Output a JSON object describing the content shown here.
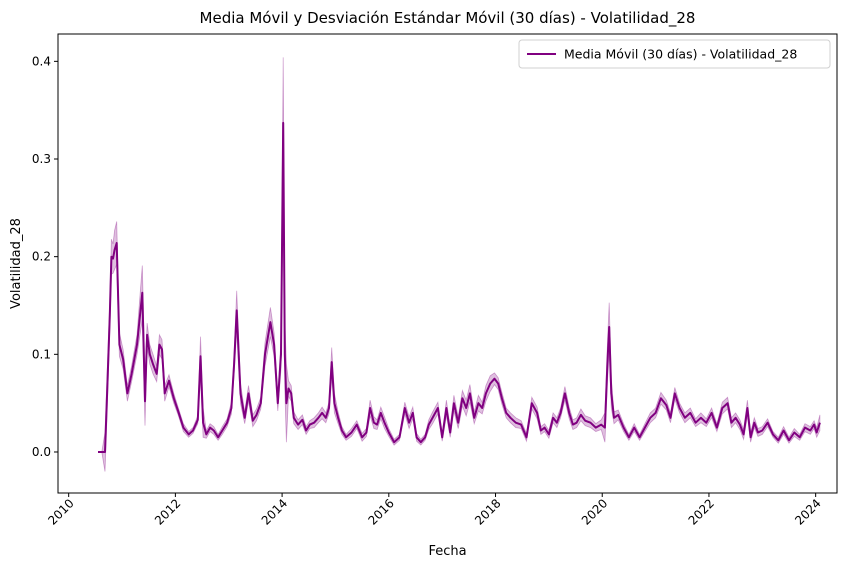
{
  "chart_data": {
    "type": "line",
    "title": "Media Móvil y Desviación Estándar Móvil (30 días) - Volatilidad_28",
    "xlabel": "Fecha",
    "ylabel": "Volatilidad_28",
    "xlim": [
      2009.8,
      2024.4
    ],
    "ylim": [
      -0.042,
      0.428
    ],
    "x_ticks": [
      2010,
      2012,
      2014,
      2016,
      2018,
      2020,
      2022,
      2024
    ],
    "x_tick_labels": [
      "2010",
      "2012",
      "2014",
      "2016",
      "2018",
      "2020",
      "2022",
      "2024"
    ],
    "y_ticks": [
      0.0,
      0.1,
      0.2,
      0.3,
      0.4
    ],
    "y_tick_labels": [
      "0.0",
      "0.1",
      "0.2",
      "0.3",
      "0.4"
    ],
    "grid": false,
    "legend_position": "top-right",
    "colors": {
      "line": "#800080",
      "band": "#800080",
      "band_opacity": 0.25
    },
    "series": [
      {
        "name": "Media Móvil (30 días) - Volatilidad_28",
        "x": [
          2010.55,
          2010.62,
          2010.68,
          2010.72,
          2010.77,
          2010.8,
          2010.83,
          2010.86,
          2010.9,
          2010.95,
          2011.02,
          2011.1,
          2011.18,
          2011.28,
          2011.38,
          2011.43,
          2011.47,
          2011.52,
          2011.58,
          2011.65,
          2011.7,
          2011.75,
          2011.8,
          2011.88,
          2011.97,
          2012.05,
          2012.15,
          2012.25,
          2012.33,
          2012.42,
          2012.47,
          2012.52,
          2012.58,
          2012.65,
          2012.72,
          2012.8,
          2012.88,
          2012.97,
          2013.05,
          2013.1,
          2013.15,
          2013.22,
          2013.3,
          2013.37,
          2013.45,
          2013.52,
          2013.6,
          2013.68,
          2013.78,
          2013.85,
          2013.92,
          2013.98,
          2014.02,
          2014.05,
          2014.08,
          2014.12,
          2014.17,
          2014.22,
          2014.3,
          2014.38,
          2014.45,
          2014.52,
          2014.6,
          2014.68,
          2014.75,
          2014.82,
          2014.88,
          2014.93,
          2014.98,
          2015.05,
          2015.12,
          2015.2,
          2015.3,
          2015.4,
          2015.5,
          2015.58,
          2015.65,
          2015.72,
          2015.78,
          2015.85,
          2015.92,
          2016.0,
          2016.1,
          2016.2,
          2016.3,
          2016.38,
          2016.45,
          2016.52,
          2016.6,
          2016.68,
          2016.75,
          2016.82,
          2016.92,
          2017.0,
          2017.08,
          2017.15,
          2017.22,
          2017.3,
          2017.38,
          2017.45,
          2017.52,
          2017.6,
          2017.68,
          2017.75,
          2017.82,
          2017.9,
          2017.98,
          2018.05,
          2018.12,
          2018.2,
          2018.28,
          2018.38,
          2018.48,
          2018.58,
          2018.68,
          2018.78,
          2018.85,
          2018.92,
          2019.0,
          2019.08,
          2019.15,
          2019.22,
          2019.3,
          2019.38,
          2019.45,
          2019.52,
          2019.6,
          2019.68,
          2019.78,
          2019.88,
          2019.98,
          2020.05,
          2020.1,
          2020.13,
          2020.17,
          2020.22,
          2020.3,
          2020.4,
          2020.5,
          2020.6,
          2020.7,
          2020.8,
          2020.9,
          2021.0,
          2021.1,
          2021.2,
          2021.28,
          2021.36,
          2021.45,
          2021.55,
          2021.65,
          2021.75,
          2021.85,
          2021.95,
          2022.05,
          2022.15,
          2022.25,
          2022.35,
          2022.42,
          2022.5,
          2022.58,
          2022.65,
          2022.72,
          2022.78,
          2022.85,
          2022.92,
          2023.0,
          2023.1,
          2023.2,
          2023.3,
          2023.4,
          2023.5,
          2023.6,
          2023.7,
          2023.8,
          2023.9,
          2023.97,
          2024.02,
          2024.08
        ],
        "y": [
          0.0,
          0.0,
          0.0,
          0.06,
          0.14,
          0.2,
          0.198,
          0.207,
          0.214,
          0.11,
          0.095,
          0.06,
          0.08,
          0.11,
          0.163,
          0.052,
          0.12,
          0.1,
          0.09,
          0.08,
          0.11,
          0.105,
          0.06,
          0.073,
          0.055,
          0.042,
          0.025,
          0.018,
          0.022,
          0.033,
          0.098,
          0.03,
          0.018,
          0.025,
          0.022,
          0.015,
          0.022,
          0.03,
          0.045,
          0.09,
          0.145,
          0.06,
          0.035,
          0.06,
          0.032,
          0.038,
          0.05,
          0.1,
          0.133,
          0.11,
          0.05,
          0.1,
          0.337,
          0.1,
          0.05,
          0.065,
          0.06,
          0.035,
          0.028,
          0.033,
          0.022,
          0.028,
          0.03,
          0.035,
          0.04,
          0.035,
          0.045,
          0.092,
          0.05,
          0.035,
          0.022,
          0.015,
          0.02,
          0.028,
          0.015,
          0.02,
          0.045,
          0.03,
          0.028,
          0.04,
          0.03,
          0.02,
          0.01,
          0.015,
          0.045,
          0.03,
          0.04,
          0.015,
          0.01,
          0.015,
          0.028,
          0.035,
          0.045,
          0.015,
          0.045,
          0.02,
          0.05,
          0.03,
          0.055,
          0.045,
          0.06,
          0.035,
          0.05,
          0.045,
          0.06,
          0.07,
          0.075,
          0.07,
          0.055,
          0.04,
          0.035,
          0.03,
          0.028,
          0.015,
          0.05,
          0.04,
          0.022,
          0.025,
          0.018,
          0.035,
          0.03,
          0.04,
          0.06,
          0.04,
          0.028,
          0.03,
          0.038,
          0.032,
          0.03,
          0.025,
          0.028,
          0.025,
          0.095,
          0.128,
          0.06,
          0.035,
          0.038,
          0.025,
          0.015,
          0.025,
          0.015,
          0.025,
          0.035,
          0.04,
          0.055,
          0.048,
          0.035,
          0.06,
          0.045,
          0.035,
          0.04,
          0.03,
          0.035,
          0.03,
          0.04,
          0.025,
          0.045,
          0.05,
          0.03,
          0.035,
          0.028,
          0.018,
          0.045,
          0.015,
          0.03,
          0.02,
          0.022,
          0.03,
          0.018,
          0.012,
          0.022,
          0.012,
          0.02,
          0.015,
          0.025,
          0.022,
          0.028,
          0.02,
          0.03
        ],
        "std": [
          0.0,
          0.0,
          0.02,
          0.02,
          0.015,
          0.018,
          0.015,
          0.02,
          0.022,
          0.012,
          0.01,
          0.008,
          0.008,
          0.01,
          0.028,
          0.025,
          0.012,
          0.01,
          0.01,
          0.008,
          0.01,
          0.01,
          0.008,
          0.006,
          0.005,
          0.004,
          0.004,
          0.003,
          0.003,
          0.004,
          0.02,
          0.015,
          0.004,
          0.004,
          0.004,
          0.003,
          0.004,
          0.004,
          0.006,
          0.01,
          0.02,
          0.01,
          0.006,
          0.008,
          0.006,
          0.006,
          0.006,
          0.012,
          0.015,
          0.012,
          0.008,
          0.015,
          0.067,
          0.035,
          0.04,
          0.008,
          0.008,
          0.006,
          0.005,
          0.005,
          0.004,
          0.004,
          0.005,
          0.005,
          0.006,
          0.005,
          0.006,
          0.015,
          0.01,
          0.006,
          0.004,
          0.003,
          0.004,
          0.004,
          0.004,
          0.004,
          0.008,
          0.006,
          0.005,
          0.006,
          0.006,
          0.004,
          0.003,
          0.003,
          0.006,
          0.006,
          0.006,
          0.004,
          0.003,
          0.003,
          0.005,
          0.006,
          0.006,
          0.004,
          0.008,
          0.005,
          0.008,
          0.006,
          0.008,
          0.008,
          0.009,
          0.006,
          0.008,
          0.006,
          0.008,
          0.008,
          0.006,
          0.006,
          0.006,
          0.005,
          0.005,
          0.005,
          0.004,
          0.004,
          0.006,
          0.006,
          0.004,
          0.004,
          0.004,
          0.005,
          0.005,
          0.005,
          0.007,
          0.006,
          0.005,
          0.005,
          0.006,
          0.005,
          0.005,
          0.004,
          0.005,
          0.015,
          0.02,
          0.025,
          0.015,
          0.006,
          0.005,
          0.004,
          0.003,
          0.004,
          0.003,
          0.004,
          0.005,
          0.005,
          0.006,
          0.005,
          0.005,
          0.006,
          0.005,
          0.005,
          0.005,
          0.004,
          0.005,
          0.004,
          0.005,
          0.004,
          0.006,
          0.006,
          0.005,
          0.005,
          0.005,
          0.005,
          0.008,
          0.005,
          0.005,
          0.004,
          0.004,
          0.004,
          0.003,
          0.003,
          0.004,
          0.003,
          0.004,
          0.003,
          0.004,
          0.004,
          0.004,
          0.005,
          0.008
        ]
      }
    ]
  }
}
